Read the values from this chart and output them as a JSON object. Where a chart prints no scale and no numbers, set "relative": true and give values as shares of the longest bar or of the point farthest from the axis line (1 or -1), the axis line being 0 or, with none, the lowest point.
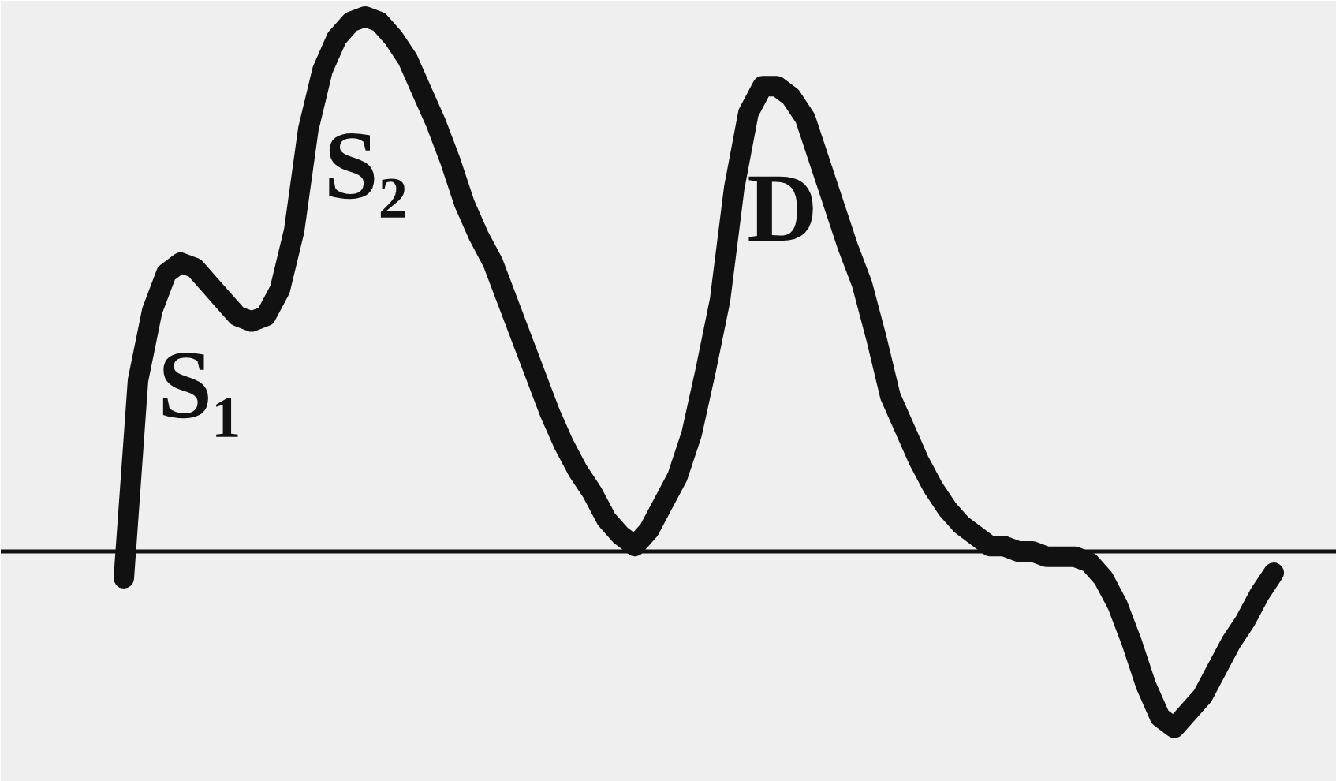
{
  "chart_data": {
    "type": "line",
    "relative": true,
    "color": "#111111",
    "categories": [
      null,
      null,
      null,
      null,
      null,
      null,
      null,
      null,
      null,
      null,
      null,
      null,
      null,
      null,
      null,
      null,
      null,
      null,
      null,
      null,
      null,
      null,
      null,
      null,
      null,
      null,
      null,
      null,
      null,
      null,
      null,
      null,
      null,
      null,
      null,
      null,
      null,
      null,
      null,
      null,
      null,
      null,
      null,
      null,
      null,
      null,
      null,
      null,
      null,
      null,
      null,
      null,
      null,
      null,
      null,
      null,
      null,
      null,
      null,
      null,
      null,
      null,
      null,
      null,
      null,
      null,
      null,
      null,
      null,
      null,
      null,
      null,
      null,
      null,
      null,
      null,
      null,
      null,
      null,
      null,
      null,
      null
    ],
    "values": [
      -0.05,
      0.32,
      0.45,
      0.52,
      0.54,
      0.53,
      0.5,
      0.47,
      0.44,
      0.43,
      0.44,
      0.49,
      0.6,
      0.79,
      0.9,
      0.96,
      0.99,
      1.0,
      0.99,
      0.96,
      0.92,
      0.86,
      0.8,
      0.73,
      0.65,
      0.59,
      0.54,
      0.47,
      0.4,
      0.33,
      0.26,
      0.2,
      0.15,
      0.11,
      0.06,
      0.03,
      0.01,
      0.04,
      0.09,
      0.14,
      0.22,
      0.34,
      0.47,
      0.68,
      0.82,
      0.87,
      0.87,
      0.85,
      0.81,
      0.73,
      0.65,
      0.57,
      0.5,
      0.4,
      0.29,
      0.23,
      0.17,
      0.12,
      0.08,
      0.05,
      0.03,
      0.01,
      0.01,
      0.0,
      0.0,
      -0.01,
      -0.01,
      -0.01,
      -0.02,
      -0.05,
      -0.1,
      -0.17,
      -0.25,
      -0.31,
      -0.33,
      -0.3,
      -0.27,
      -0.22,
      -0.17,
      -0.13,
      -0.08,
      -0.04
    ],
    "annotations": [
      "S₁",
      "S₂",
      "D"
    ]
  }
}
